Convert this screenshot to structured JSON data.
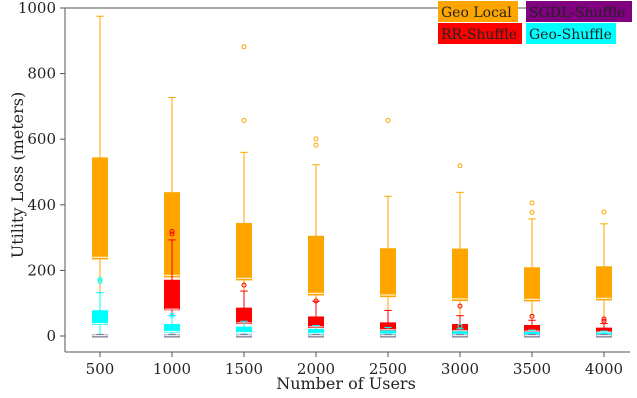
{
  "chart_data": {
    "type": "box",
    "title": "",
    "xlabel": "Number of Users",
    "ylabel": "Utility Loss (meters)",
    "ylim": [
      0,
      1000
    ],
    "yticks": [
      0,
      200,
      400,
      600,
      800,
      1000
    ],
    "categories": [
      "500",
      "1000",
      "1500",
      "2000",
      "2500",
      "3000",
      "3500",
      "4000"
    ],
    "legend": {
      "placement": "top-right",
      "entries": [
        {
          "label": "Geo Local",
          "color": "#FFA500"
        },
        {
          "label": "SGDL-Shuffle",
          "color": "#800080"
        },
        {
          "label": "RR-Shuffle",
          "color": "#FF0000"
        },
        {
          "label": "Geo-Shuffle",
          "color": "#00FFFF"
        }
      ]
    },
    "series": [
      {
        "name": "Geo Local",
        "color": "#FFA500",
        "boxes": [
          {
            "whislo": 0,
            "q1": 235,
            "med": 240,
            "q3": 543,
            "whishi": 975,
            "fliers": []
          },
          {
            "whislo": 0,
            "q1": 180,
            "med": 185,
            "q3": 437,
            "whishi": 727,
            "fliers": []
          },
          {
            "whislo": 0,
            "q1": 171,
            "med": 176,
            "q3": 343,
            "whishi": 560,
            "fliers": [
              657,
              882
            ]
          },
          {
            "whislo": 0,
            "q1": 125,
            "med": 130,
            "q3": 304,
            "whishi": 522,
            "fliers": [
              582,
              601
            ]
          },
          {
            "whislo": 0,
            "q1": 120,
            "med": 125,
            "q3": 266,
            "whishi": 426,
            "fliers": [
              657
            ]
          },
          {
            "whislo": 0,
            "q1": 108,
            "med": 113,
            "q3": 265,
            "whishi": 438,
            "fliers": [
              519
            ]
          },
          {
            "whislo": 0,
            "q1": 107,
            "med": 112,
            "q3": 208,
            "whishi": 357,
            "fliers": [
              377,
              406
            ]
          },
          {
            "whislo": 0,
            "q1": 110,
            "med": 115,
            "q3": 211,
            "whishi": 342,
            "fliers": [
              378
            ]
          }
        ]
      },
      {
        "name": "RR-Shuffle",
        "color": "#FF0000",
        "boxes": null
      },
      {
        "name": "SGDL-Shuffle",
        "color": "#800080",
        "boxes": null
      },
      {
        "name": "Geo-Shuffle",
        "color": "#00FFFF",
        "boxes": null
      }
    ],
    "rr_shuffle_boxes": [
      {
        "whislo": 0,
        "q1": 0,
        "med": 0,
        "q3": 0,
        "whishi": 0,
        "fliers": []
      },
      {
        "whislo": 0,
        "q1": 80,
        "med": 82,
        "q3": 170,
        "whishi": 293,
        "fliers": [
          311,
          319
        ]
      },
      {
        "whislo": 0,
        "q1": 38,
        "med": 40,
        "q3": 85,
        "whishi": 137,
        "fliers": [
          155
        ]
      },
      {
        "whislo": 0,
        "q1": 26,
        "med": 28,
        "q3": 58,
        "whishi": 106,
        "fliers": [
          107
        ]
      },
      {
        "whislo": 0,
        "q1": 17,
        "med": 19,
        "q3": 40,
        "whishi": 78,
        "fliers": []
      },
      {
        "whislo": 0,
        "q1": 15,
        "med": 16,
        "q3": 35,
        "whishi": 62,
        "fliers": [
          91
        ]
      },
      {
        "whislo": 0,
        "q1": 13,
        "med": 15,
        "q3": 32,
        "whishi": 48,
        "fliers": [
          60
        ]
      },
      {
        "whislo": 0,
        "q1": 10,
        "med": 12,
        "q3": 24,
        "whishi": 38,
        "fliers": [
          45,
          52
        ]
      }
    ],
    "geo_shuffle_boxes": [
      {
        "whislo": 0,
        "q1": 36,
        "med": 38,
        "q3": 77,
        "whishi": 132,
        "fliers": [
          166,
          173
        ]
      },
      {
        "whislo": 0,
        "q1": 12,
        "med": 14,
        "q3": 35,
        "whishi": 62,
        "fliers": [
          63
        ]
      },
      {
        "whislo": 0,
        "q1": 10,
        "med": 11,
        "q3": 27,
        "whishi": 45,
        "fliers": []
      },
      {
        "whislo": 0,
        "q1": 7,
        "med": 8,
        "q3": 20,
        "whishi": 32,
        "fliers": []
      },
      {
        "whislo": 0,
        "q1": 5,
        "med": 6,
        "q3": 15,
        "whishi": 26,
        "fliers": []
      },
      {
        "whislo": 0,
        "q1": 4,
        "med": 5,
        "q3": 13,
        "whishi": 22,
        "fliers": [
          30
        ]
      },
      {
        "whislo": 0,
        "q1": 3,
        "med": 4,
        "q3": 11,
        "whishi": 18,
        "fliers": []
      },
      {
        "whislo": 0,
        "q1": 3,
        "med": 4,
        "q3": 9,
        "whishi": 15,
        "fliers": []
      }
    ],
    "sgdl_shuffle_boxes": [
      {
        "whislo": 0,
        "q1": 0,
        "med": 1,
        "q3": 3,
        "whishi": 5,
        "fliers": []
      },
      {
        "whislo": 0,
        "q1": 0,
        "med": 1,
        "q3": 3,
        "whishi": 5,
        "fliers": []
      },
      {
        "whislo": 0,
        "q1": 0,
        "med": 1,
        "q3": 3,
        "whishi": 5,
        "fliers": []
      },
      {
        "whislo": 0,
        "q1": 0,
        "med": 1,
        "q3": 3,
        "whishi": 5,
        "fliers": []
      },
      {
        "whislo": 0,
        "q1": 0,
        "med": 1,
        "q3": 3,
        "whishi": 5,
        "fliers": []
      },
      {
        "whislo": 0,
        "q1": 0,
        "med": 1,
        "q3": 3,
        "whishi": 5,
        "fliers": []
      },
      {
        "whislo": 0,
        "q1": 0,
        "med": 1,
        "q3": 3,
        "whishi": 5,
        "fliers": []
      },
      {
        "whislo": 0,
        "q1": 0,
        "med": 1,
        "q3": 3,
        "whishi": 5,
        "fliers": []
      }
    ]
  }
}
